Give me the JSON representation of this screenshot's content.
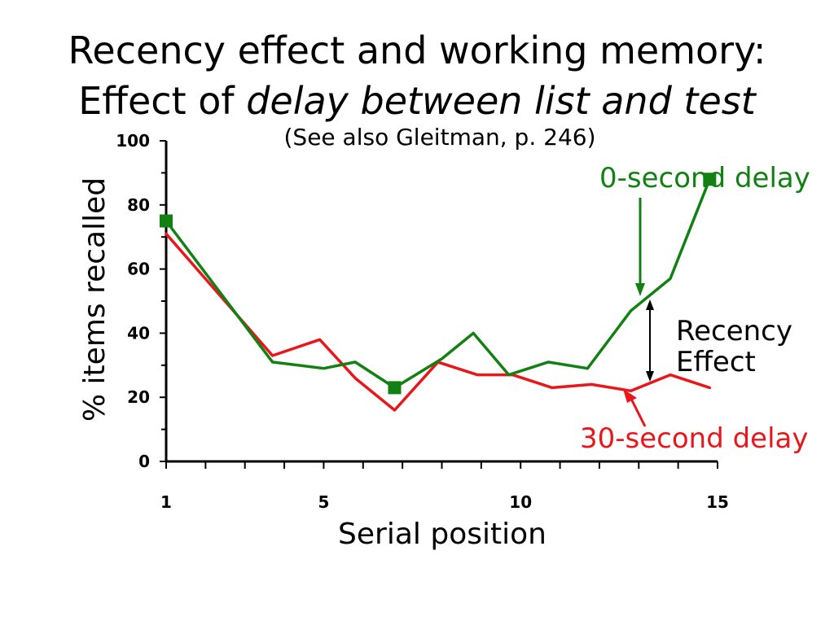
{
  "title": {
    "line1": "Recency effect and working memory:",
    "line2_prefix": "Effect of ",
    "line2_emphasis": "delay between list and test"
  },
  "subtitle": "(See also Gleitman, p. 246)",
  "annotations": {
    "zero_delay": "0-second delay",
    "thirty_delay": "30-second delay",
    "recency_line1": "Recency",
    "recency_line2": "Effect"
  },
  "colors": {
    "zero_delay": "#138013",
    "thirty_delay": "#e8171b",
    "axis": "#000000"
  },
  "chart_data": {
    "type": "line",
    "xlabel": "Serial position",
    "ylabel": "% items recalled",
    "xlim": [
      1,
      15
    ],
    "ylim": [
      0,
      100
    ],
    "x_tick_labels": [
      1,
      5,
      10,
      15
    ],
    "y_tick_labels": [
      0,
      20,
      40,
      60,
      80,
      100
    ],
    "grid": false,
    "series": [
      {
        "name": "0-second delay",
        "color": "#138013",
        "points": [
          [
            1,
            75
          ],
          [
            3.7,
            31
          ],
          [
            5,
            29
          ],
          [
            5.8,
            31
          ],
          [
            6.8,
            23
          ],
          [
            8,
            32
          ],
          [
            8.8,
            40
          ],
          [
            9.7,
            27
          ],
          [
            10.7,
            31
          ],
          [
            11.7,
            29
          ],
          [
            12.8,
            47
          ],
          [
            13.8,
            57
          ],
          [
            14.8,
            88
          ]
        ],
        "marked_points": [
          [
            1,
            75
          ],
          [
            6.8,
            23
          ],
          [
            14.8,
            88
          ]
        ]
      },
      {
        "name": "30-second delay",
        "color": "#e8171b",
        "points": [
          [
            1,
            71
          ],
          [
            3.7,
            33
          ],
          [
            4.9,
            38
          ],
          [
            5.8,
            26
          ],
          [
            6.8,
            16
          ],
          [
            7.9,
            31
          ],
          [
            8.9,
            27
          ],
          [
            9.8,
            27
          ],
          [
            10.8,
            23
          ],
          [
            11.8,
            24
          ],
          [
            12.8,
            22
          ],
          [
            13.8,
            27
          ],
          [
            14.8,
            23
          ]
        ]
      }
    ]
  }
}
